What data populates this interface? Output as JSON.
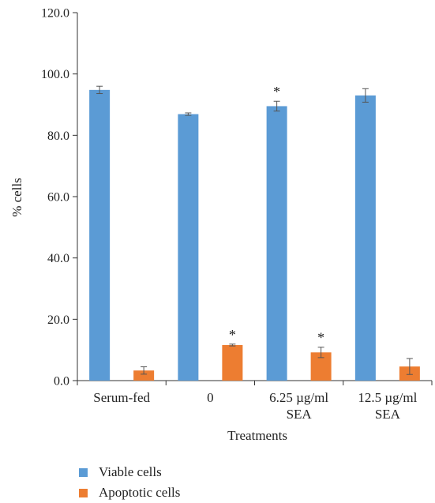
{
  "chart_data": {
    "type": "bar",
    "categories": [
      [
        "Serum-fed"
      ],
      [
        "0"
      ],
      [
        "6.25 µg/ml",
        "SEA"
      ],
      [
        "12.5 µg/ml",
        "SEA"
      ]
    ],
    "series": [
      {
        "name": "Viable cells",
        "color": "#5b9bd5",
        "values": [
          94.8,
          86.9,
          89.5,
          93.0
        ],
        "errors": [
          1.2,
          0.4,
          1.6,
          2.2
        ],
        "annotations": [
          "",
          "",
          "*",
          ""
        ]
      },
      {
        "name": "Apoptotic cells",
        "color": "#ed7d31",
        "values": [
          3.3,
          11.6,
          9.2,
          4.6
        ],
        "errors": [
          1.2,
          0.3,
          1.7,
          2.6
        ],
        "annotations": [
          "",
          "*",
          "*",
          ""
        ]
      }
    ],
    "xlabel": "Treatments",
    "ylabel": "% cells",
    "ylim": [
      0,
      120
    ],
    "yticks": [
      "0.0",
      "20.0",
      "40.0",
      "60.0",
      "80.0",
      "100.0",
      "120.0"
    ],
    "grid": false,
    "legend_position": "bottom-left"
  }
}
